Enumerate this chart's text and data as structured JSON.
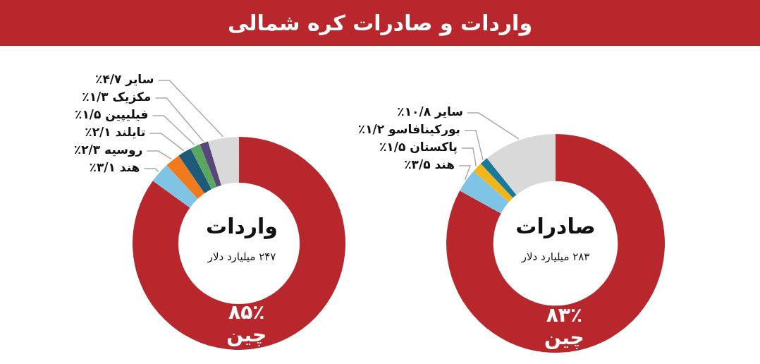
{
  "chart_data": [
    {
      "type": "donut",
      "annotations": [
        "واردات و صادرات کره شمالی"
      ],
      "title": "واردات",
      "subtitle": "۲۴۷ میلیارد دلار",
      "categories": [
        "چین",
        "هند",
        "روسیه",
        "تایلند",
        "فیلیپین",
        "مکزیک",
        "سایر"
      ],
      "values": [
        85,
        3.1,
        2.3,
        2.1,
        1.5,
        1.3,
        4.7
      ],
      "value_labels": [
        "۸۵٪",
        "۳/۱٪",
        "۲/۳٪",
        "۲/۱٪",
        "۱/۵٪",
        "۱/۳٪",
        "۴/۷٪"
      ],
      "colors": [
        "#b8272b",
        "#7fc4e4",
        "#f07b1f",
        "#1d5a78",
        "#5aa860",
        "#5a477a",
        "#d9d9d9"
      ]
    },
    {
      "type": "donut",
      "title": "صادرات",
      "subtitle": "۲۸۳ میلیارد دلار",
      "categories": [
        "چین",
        "هند",
        "پاکستان",
        "بورکینافاسو",
        "سایر"
      ],
      "values": [
        83,
        3.5,
        1.5,
        1.2,
        10.8
      ],
      "value_labels": [
        "۸۳٪",
        "۳/۵٪",
        "۱/۵٪",
        "۱/۲٪",
        "۱۰/۸٪"
      ],
      "colors": [
        "#b8272b",
        "#7fc4e4",
        "#f2b61b",
        "#1a7a99",
        "#d9d9d9"
      ]
    }
  ]
}
